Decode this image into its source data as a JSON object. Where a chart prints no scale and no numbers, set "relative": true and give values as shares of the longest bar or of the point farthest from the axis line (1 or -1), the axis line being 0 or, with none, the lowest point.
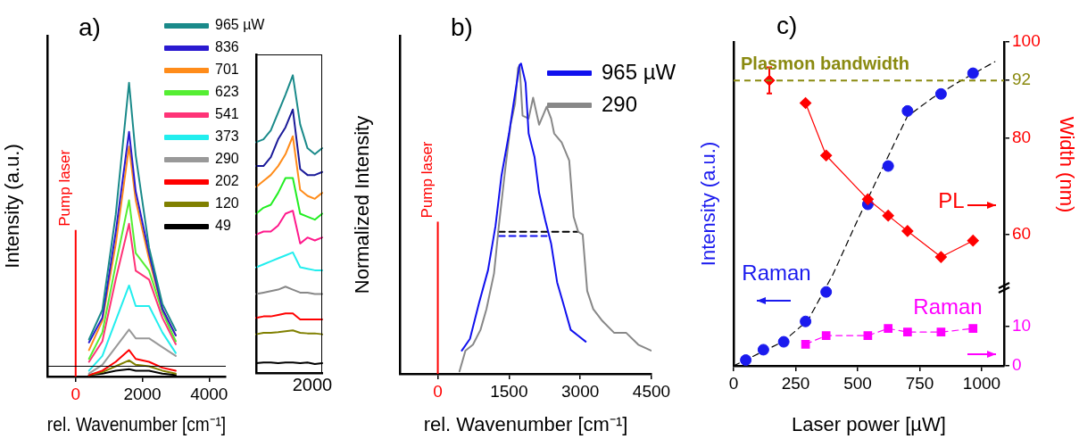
{
  "chart_data": [
    {
      "type": "line",
      "title": "a)",
      "xlabel": "rel. Wavenumber [cm⁻¹]",
      "ylabel": "Intensity (a.u.)",
      "relative": true,
      "xlim": [
        -850,
        4500
      ],
      "xticks": [
        0,
        2000,
        4000
      ],
      "grid": false,
      "legend": "top right",
      "ref_lines": [
        {
          "axis": "x",
          "value": 0,
          "label": "Pump laser",
          "color": "#ff0000"
        },
        {
          "axis": "y",
          "value": 0.035,
          "color": "#000000"
        }
      ],
      "x": [
        400,
        800,
        1200,
        1600,
        1800,
        2200,
        2600,
        3000
      ],
      "series": [
        {
          "name": "965 µW",
          "color": "#1a8a8a",
          "values": [
            0.126,
            0.227,
            0.55,
            1,
            0.753,
            0.439,
            0.247,
            0.157
          ]
        },
        {
          "name": "836",
          "color": "#2a1ad0",
          "values": [
            0.116,
            0.2,
            0.49,
            0.833,
            0.63,
            0.42,
            0.23,
            0.14
          ]
        },
        {
          "name": "701",
          "color": "#ff8c1a",
          "values": [
            0.09,
            0.19,
            0.45,
            0.783,
            0.6,
            0.4,
            0.23,
            0.14
          ]
        },
        {
          "name": "623",
          "color": "#55ee33",
          "values": [
            0.06,
            0.15,
            0.38,
            0.6,
            0.42,
            0.36,
            0.22,
            0.12
          ]
        },
        {
          "name": "541",
          "color": "#ff3377",
          "values": [
            0.05,
            0.12,
            0.33,
            0.52,
            0.36,
            0.33,
            0.2,
            0.11
          ]
        },
        {
          "name": "373",
          "color": "#22eeee",
          "values": [
            0.02,
            0.07,
            0.19,
            0.31,
            0.24,
            0.24,
            0.15,
            0.08
          ]
        },
        {
          "name": "290",
          "color": "#999999",
          "values": [
            0.01,
            0.04,
            0.1,
            0.16,
            0.13,
            0.13,
            0.1,
            0.07
          ]
        },
        {
          "name": "202",
          "color": "#ff0000",
          "values": [
            0.005,
            0.02,
            0.05,
            0.09,
            0.06,
            0.05,
            0.03,
            0.02
          ]
        },
        {
          "name": "120",
          "color": "#808000",
          "values": [
            0.005,
            0.015,
            0.035,
            0.055,
            0.04,
            0.035,
            0.02,
            0.01
          ]
        },
        {
          "name": "49",
          "color": "#000000",
          "values": [
            0.005,
            0.01,
            0.02,
            0.025,
            0.02,
            0.02,
            0.01,
            0.005
          ]
        }
      ]
    },
    {
      "type": "line",
      "relative": true,
      "grid": false,
      "annotations": [
        "2000"
      ],
      "categories": [
        null,
        null,
        null,
        null,
        null,
        null,
        null,
        null,
        null,
        null
      ],
      "series": [
        {
          "color": "#1a8a8a",
          "values": [
            0.775,
            0.785,
            0.815,
            0.875,
            0.935,
            1,
            0.835,
            0.755,
            0.735,
            0.755
          ]
        },
        {
          "color": "#1a1a99",
          "values": [
            0.695,
            0.695,
            0.725,
            0.785,
            0.825,
            0.885,
            0.685,
            0.665,
            0.665,
            0.675
          ]
        },
        {
          "color": "#ff8c1a",
          "values": [
            0.625,
            0.645,
            0.665,
            0.695,
            0.735,
            0.795,
            0.615,
            0.595,
            0.585,
            0.605
          ]
        },
        {
          "color": "#22ee22",
          "values": [
            0.535,
            0.555,
            0.565,
            0.605,
            0.655,
            0.655,
            0.535,
            0.525,
            0.515,
            0.535
          ]
        },
        {
          "color": "#ff1a8c",
          "values": [
            0.465,
            0.475,
            0.475,
            0.495,
            0.535,
            0.545,
            0.435,
            0.455,
            0.445,
            0.455
          ]
        },
        {
          "color": "#22eeee",
          "values": [
            0.355,
            0.365,
            0.375,
            0.385,
            0.395,
            0.405,
            0.355,
            0.35,
            0.345,
            0.345
          ]
        },
        {
          "color": "#888888",
          "values": [
            0.265,
            0.27,
            0.275,
            0.28,
            0.29,
            0.28,
            0.27,
            0.27,
            0.265,
            0.265
          ]
        },
        {
          "color": "#ff0000",
          "values": [
            0.185,
            0.19,
            0.19,
            0.195,
            0.2,
            0.2,
            0.18,
            0.18,
            0.18,
            0.18
          ]
        },
        {
          "color": "#808000",
          "values": [
            0.13,
            0.135,
            0.135,
            0.137,
            0.14,
            0.143,
            0.135,
            0.133,
            0.133,
            0.13
          ]
        },
        {
          "color": "#000000",
          "values": [
            0.033,
            0.035,
            0.035,
            0.033,
            0.035,
            0.035,
            0.033,
            0.035,
            0.03,
            0.033
          ]
        }
      ]
    },
    {
      "type": "line",
      "title": "b)",
      "xlabel": "rel. Wavenumber [cm⁻¹]",
      "ylabel": "Normalized Intensity",
      "relative": true,
      "xlim": [
        -800,
        4500
      ],
      "xticks": [
        0,
        1500,
        3000,
        4500
      ],
      "grid": false,
      "legend": "top right",
      "ref_lines": [
        {
          "axis": "x",
          "value": 0,
          "label": "Pump laser",
          "color": "#ff0000"
        }
      ],
      "series": [
        {
          "name": "965 µW",
          "color": "#1010ee",
          "x": [
            506,
            677,
            867,
            1057,
            1215,
            1342,
            1500,
            1595,
            1722,
            1753,
            1848,
            1912,
            2038,
            2133,
            2260,
            2386,
            2513,
            2640,
            2798,
            2956,
            3114
          ],
          "values": [
            0.075,
            0.113,
            0.228,
            0.334,
            0.477,
            0.64,
            0.775,
            0.871,
            0.995,
            1,
            0.938,
            0.775,
            0.698,
            0.583,
            0.497,
            0.42,
            0.295,
            0.228,
            0.142,
            0.123,
            0.104
          ]
        },
        {
          "name": "290",
          "color": "#888888",
          "x": [
            456,
            582,
            740,
            899,
            1025,
            1184,
            1279,
            1405,
            1532,
            1627,
            1690,
            1722,
            1785,
            1912,
            2007,
            2133,
            2292,
            2386,
            2450,
            2608,
            2767,
            2861,
            2956,
            3051,
            3146,
            3273,
            3463,
            3716,
            3969,
            4222,
            4490
          ],
          "values": [
            0.008,
            0.075,
            0.094,
            0.142,
            0.209,
            0.324,
            0.468,
            0.64,
            0.803,
            0.871,
            0.986,
            0.995,
            0.832,
            0.823,
            0.89,
            0.803,
            0.861,
            0.823,
            0.775,
            0.746,
            0.688,
            0.506,
            0.458,
            0.449,
            0.267,
            0.209,
            0.171,
            0.132,
            0.132,
            0.094,
            0.075
          ]
        },
        {
          "color": "#000000",
          "line_style": "dashed",
          "x": [
            1279,
            2956
          ],
          "values": [
            0.458,
            0.458
          ]
        },
        {
          "color": "#1010ee",
          "line_style": "dashed",
          "x": [
            1279,
            2292
          ],
          "values": [
            0.444,
            0.444
          ]
        }
      ]
    },
    {
      "type": "scatter",
      "title": "c)",
      "xlabel": "Laser power [µW]",
      "ylabel": "Intensity (a.u.)",
      "relative": true,
      "xlim": [
        0,
        1090
      ],
      "xticks": [
        0,
        250,
        500,
        750,
        1000
      ],
      "grid": false,
      "marker": "circle",
      "annotations": [
        "Raman"
      ],
      "series": [
        {
          "color": "#1a1aee",
          "x": [
            49,
            120,
            202,
            290,
            373,
            541,
            623,
            701,
            836,
            965
          ],
          "values": [
            0.019,
            0.053,
            0.079,
            0.146,
            0.243,
            0.531,
            0.657,
            0.838,
            0.894,
            0.962
          ]
        },
        {
          "type": "line",
          "color": "#000000",
          "marker": "none",
          "line_style": "dashed",
          "x": [
            0,
            100,
            200,
            300,
            400,
            500,
            600,
            700,
            800,
            900,
            1053
          ],
          "values": [
            0,
            0.04,
            0.08,
            0.15,
            0.3,
            0.48,
            0.65,
            0.82,
            0.88,
            0.93,
            1
          ]
        }
      ]
    },
    {
      "type": "scatter",
      "xlim": [
        0,
        1090
      ],
      "tick_labels": "y2",
      "grid": false,
      "y2label": "Width (nm)",
      "y2lim": [
        49,
        100
      ],
      "y2ticks": [
        60,
        80,
        92,
        100
      ],
      "annotations": [
        "PL"
      ],
      "ref_lines": [
        {
          "axis": "y2",
          "value": 92,
          "label": "Plasmon bandwidth",
          "color": "#8a8a10",
          "line_style": "dashed"
        }
      ],
      "series": [
        {
          "type": "line",
          "axis": "y2",
          "color": "#ff0000",
          "marker": "diamond",
          "x": [
            290,
            373,
            541,
            623,
            701,
            836,
            965
          ],
          "values": [
            87.3,
            76.4,
            67.3,
            63.9,
            60.7,
            55.3,
            58.7
          ]
        },
        {
          "axis": "y2",
          "color": "#ff0000",
          "marker": "diamond",
          "x": [
            144
          ],
          "values": [
            92
          ],
          "errors": [
            2.7
          ]
        }
      ]
    },
    {
      "type": "scatter",
      "xlim": [
        0,
        1090
      ],
      "tick_labels": "y2",
      "grid": false,
      "y2lim": [
        0,
        20
      ],
      "y2ticks": [
        0,
        10
      ],
      "annotations": [
        "Raman"
      ],
      "series": [
        {
          "type": "line",
          "axis": "y2",
          "color": "#ff00ff",
          "marker": "square",
          "line_style": "dashed",
          "x": [
            290,
            373,
            541,
            623,
            701,
            836,
            965
          ],
          "values": [
            5.5,
            7.7,
            7.7,
            9.5,
            8.6,
            8.6,
            9.5
          ]
        }
      ]
    }
  ]
}
